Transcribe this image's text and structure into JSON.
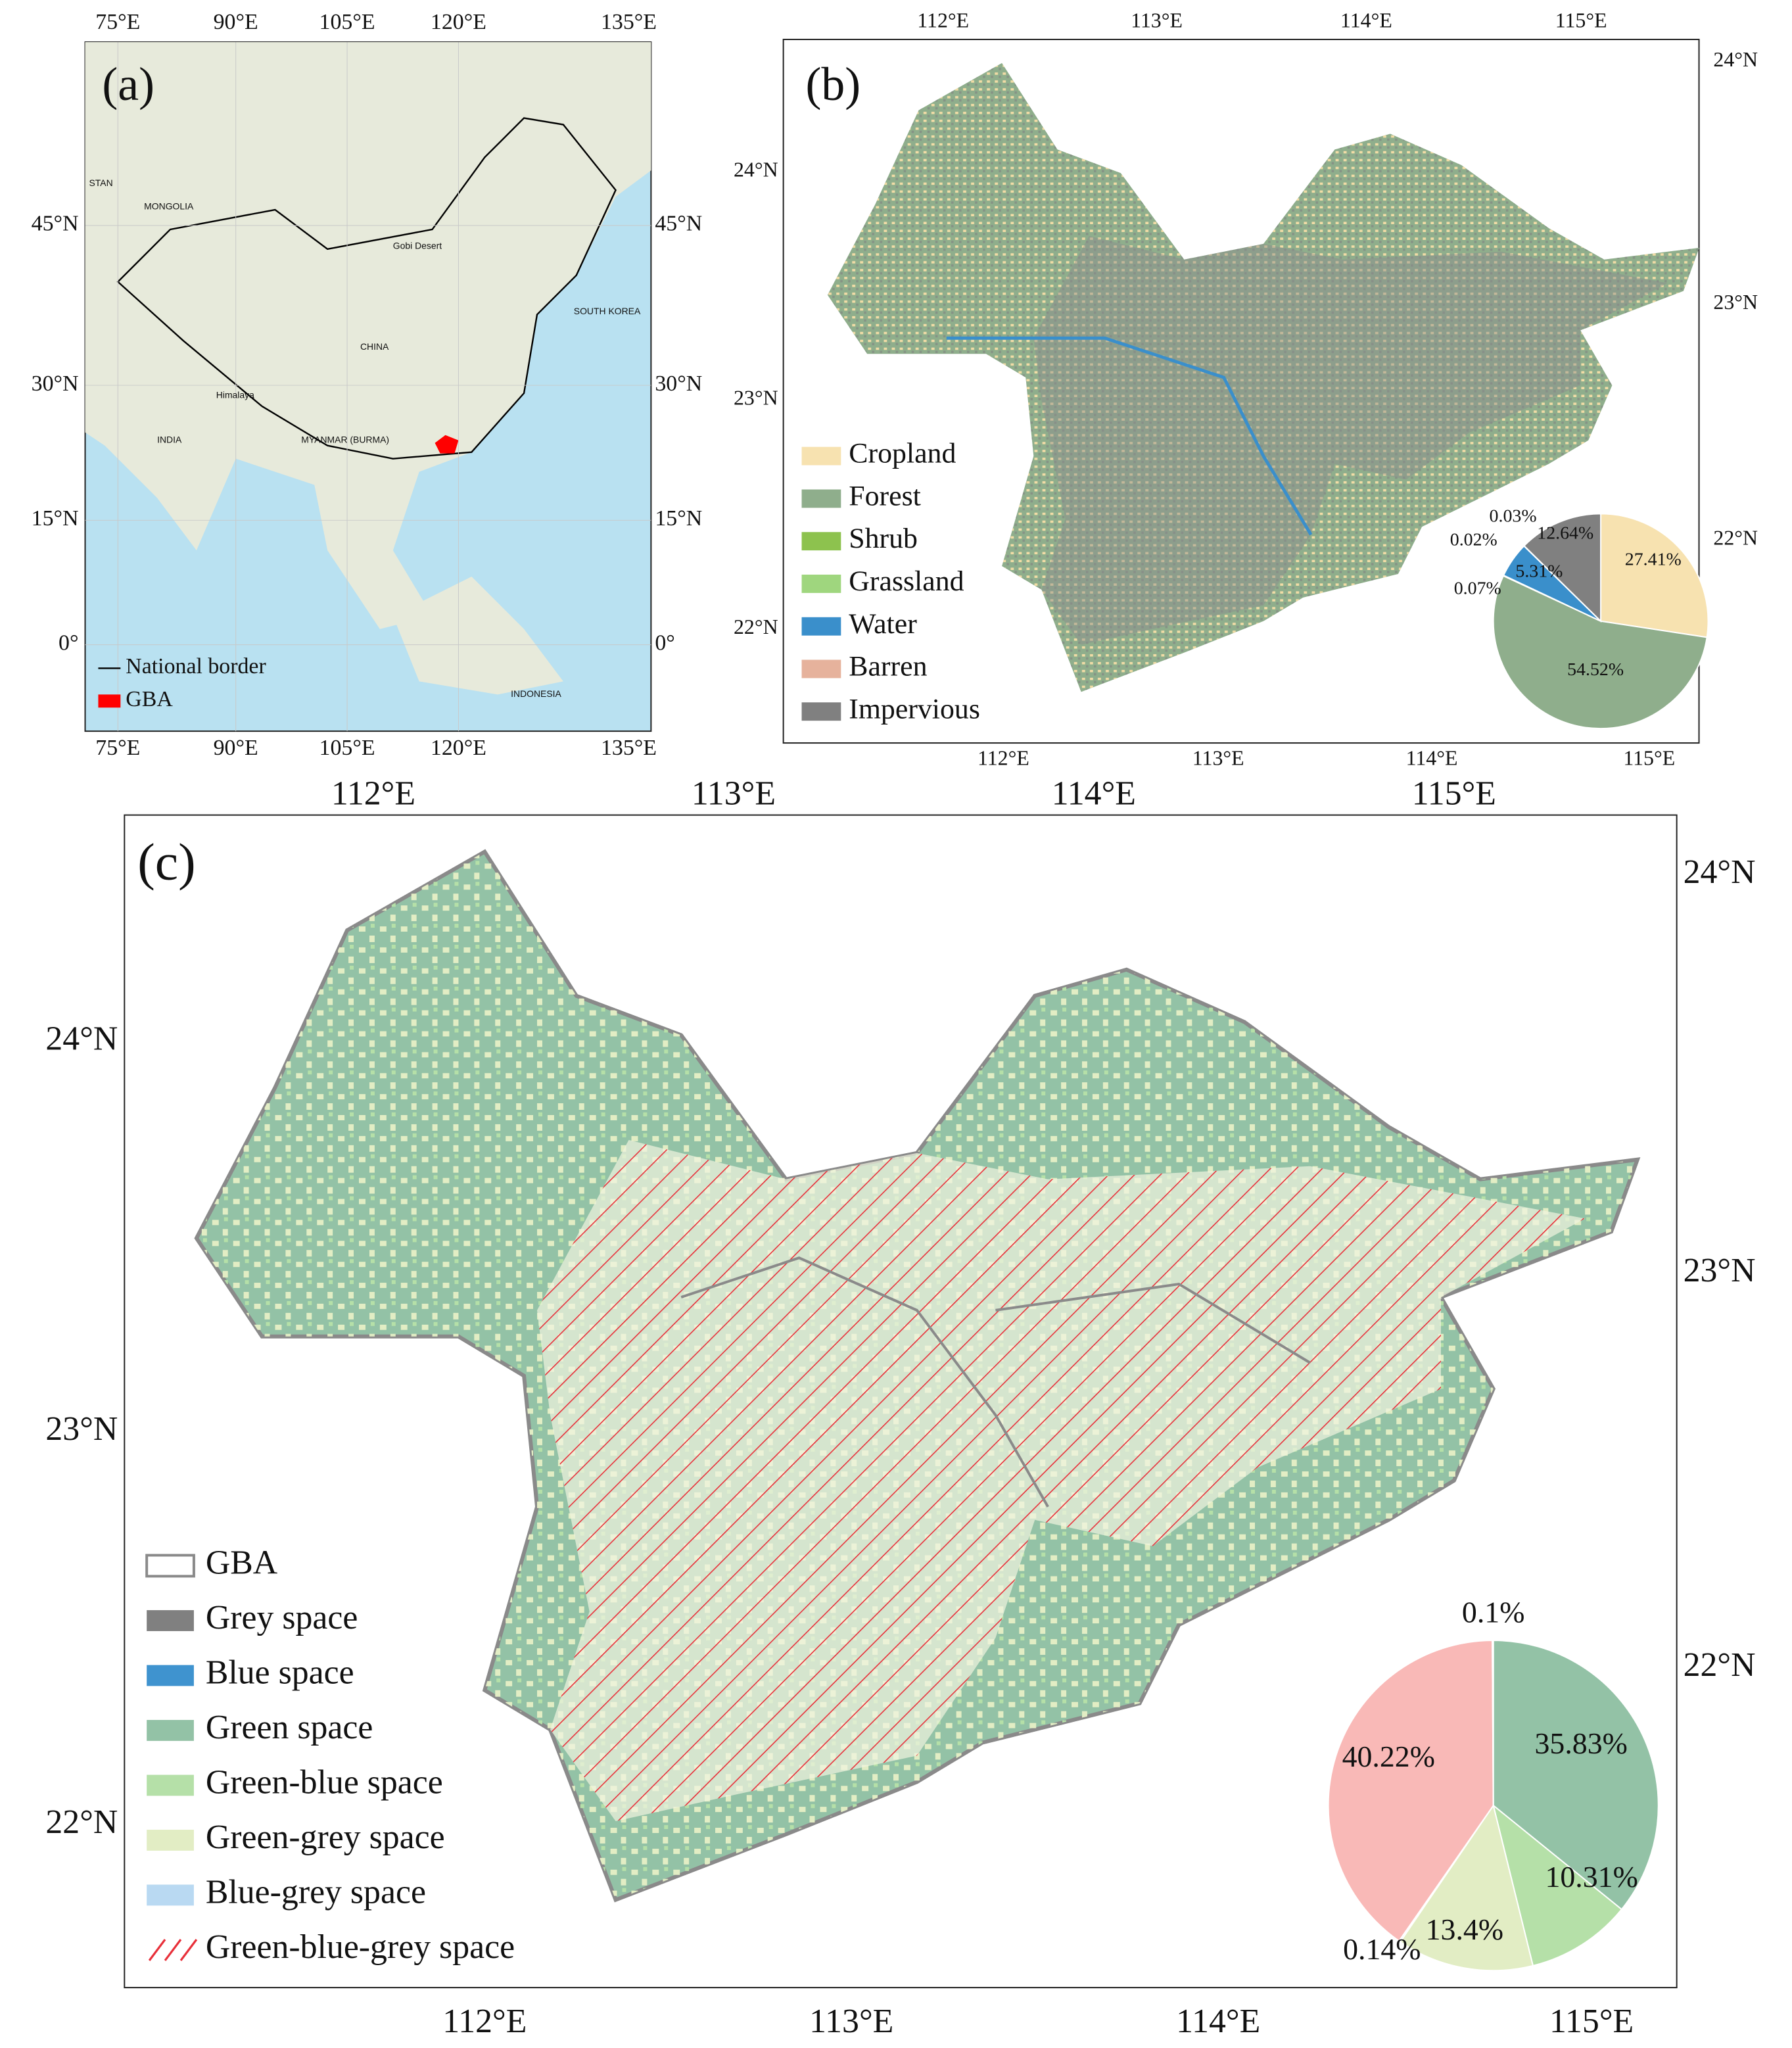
{
  "panel_a": {
    "label": "(a)",
    "top_labels": [
      "75°E",
      "90°E",
      "105°E",
      "120°E",
      "135°E"
    ],
    "bottom_labels": [
      "75°E",
      "90°E",
      "105°E",
      "120°E",
      "135°E"
    ],
    "left_labels": [
      "45°N",
      "30°N",
      "15°N",
      "0°"
    ],
    "right_labels": [
      "45°N",
      "30°N",
      "15°N",
      "0°"
    ],
    "legend": [
      {
        "name": "National border",
        "color": "#000000"
      },
      {
        "name": "GBA",
        "color": "#ff0000"
      }
    ],
    "place_labels": [
      "STAN",
      "MONGOLIA",
      "Gobi Desert",
      "CHINA",
      "SOUTH KOREA",
      "Himalaya",
      "INDIA",
      "MYANMAR (BURMA)",
      "INDONESIA"
    ]
  },
  "panel_b": {
    "label": "(b)",
    "top_labels": [
      "112°E",
      "113°E",
      "114°E",
      "115°E"
    ],
    "bottom_labels": [
      "112°E",
      "113°E",
      "114°E",
      "115°E"
    ],
    "left_labels": [
      "24°N",
      "23°N",
      "22°N"
    ],
    "right_labels": [
      "24°N",
      "23°N",
      "22°N"
    ]
  },
  "panel_c": {
    "label": "(c)",
    "top_labels": [
      "112°E",
      "113°E",
      "114°E",
      "115°E"
    ],
    "bottom_labels": [
      "112°E",
      "113°E",
      "114°E",
      "115°E"
    ],
    "left_labels": [
      "24°N",
      "23°N",
      "22°N"
    ],
    "right_labels": [
      "24°N",
      "23°N",
      "22°N"
    ],
    "legend": [
      {
        "name": "GBA",
        "color": "#8a8a8a"
      },
      {
        "name": "Grey space",
        "color": "#808080"
      },
      {
        "name": "Blue space",
        "color": "#3f93cf"
      },
      {
        "name": "Green space",
        "color": "#93c2a6"
      },
      {
        "name": "Green-blue space",
        "color": "#b5e0a8"
      },
      {
        "name": "Green-grey space",
        "color": "#e2edc4"
      },
      {
        "name": "Blue-grey space",
        "color": "#b9d9f2"
      },
      {
        "name": "Green-blue-grey space",
        "color": "#e8303a"
      }
    ]
  },
  "chart_data": [
    {
      "type": "pie",
      "categories": [
        "Cropland",
        "Forest",
        "Shrub",
        "Grassland",
        "Water",
        "Barren",
        "Impervious"
      ],
      "values": [
        27.41,
        54.52,
        0.07,
        0.02,
        5.31,
        0.03,
        12.64
      ],
      "value_labels": [
        "27.41%",
        "54.52%",
        "0.07%",
        "0.02%",
        "5.31%",
        "0.03%",
        "12.64%"
      ],
      "colors": [
        "#f7e2b0",
        "#8fae8c",
        "#8dc24e",
        "#9fd67e",
        "#3a8fcb",
        "#e6b29c",
        "#808080"
      ]
    },
    {
      "type": "pie",
      "categories": [
        "Green space",
        "Green-blue space",
        "Green-grey space",
        "Blue-grey space",
        "Green-blue-grey space",
        "Blue space"
      ],
      "values": [
        35.83,
        10.31,
        13.4,
        0.14,
        40.22,
        0.1
      ],
      "value_labels": [
        "35.83%",
        "10.31%",
        "13.4%",
        "0.14%",
        "40.22%",
        "0.1%"
      ],
      "colors": [
        "#93c2a6",
        "#b5e0a8",
        "#e2edc4",
        "#b9d9f2",
        "#f9b9b7",
        "#3f93cf"
      ]
    }
  ]
}
